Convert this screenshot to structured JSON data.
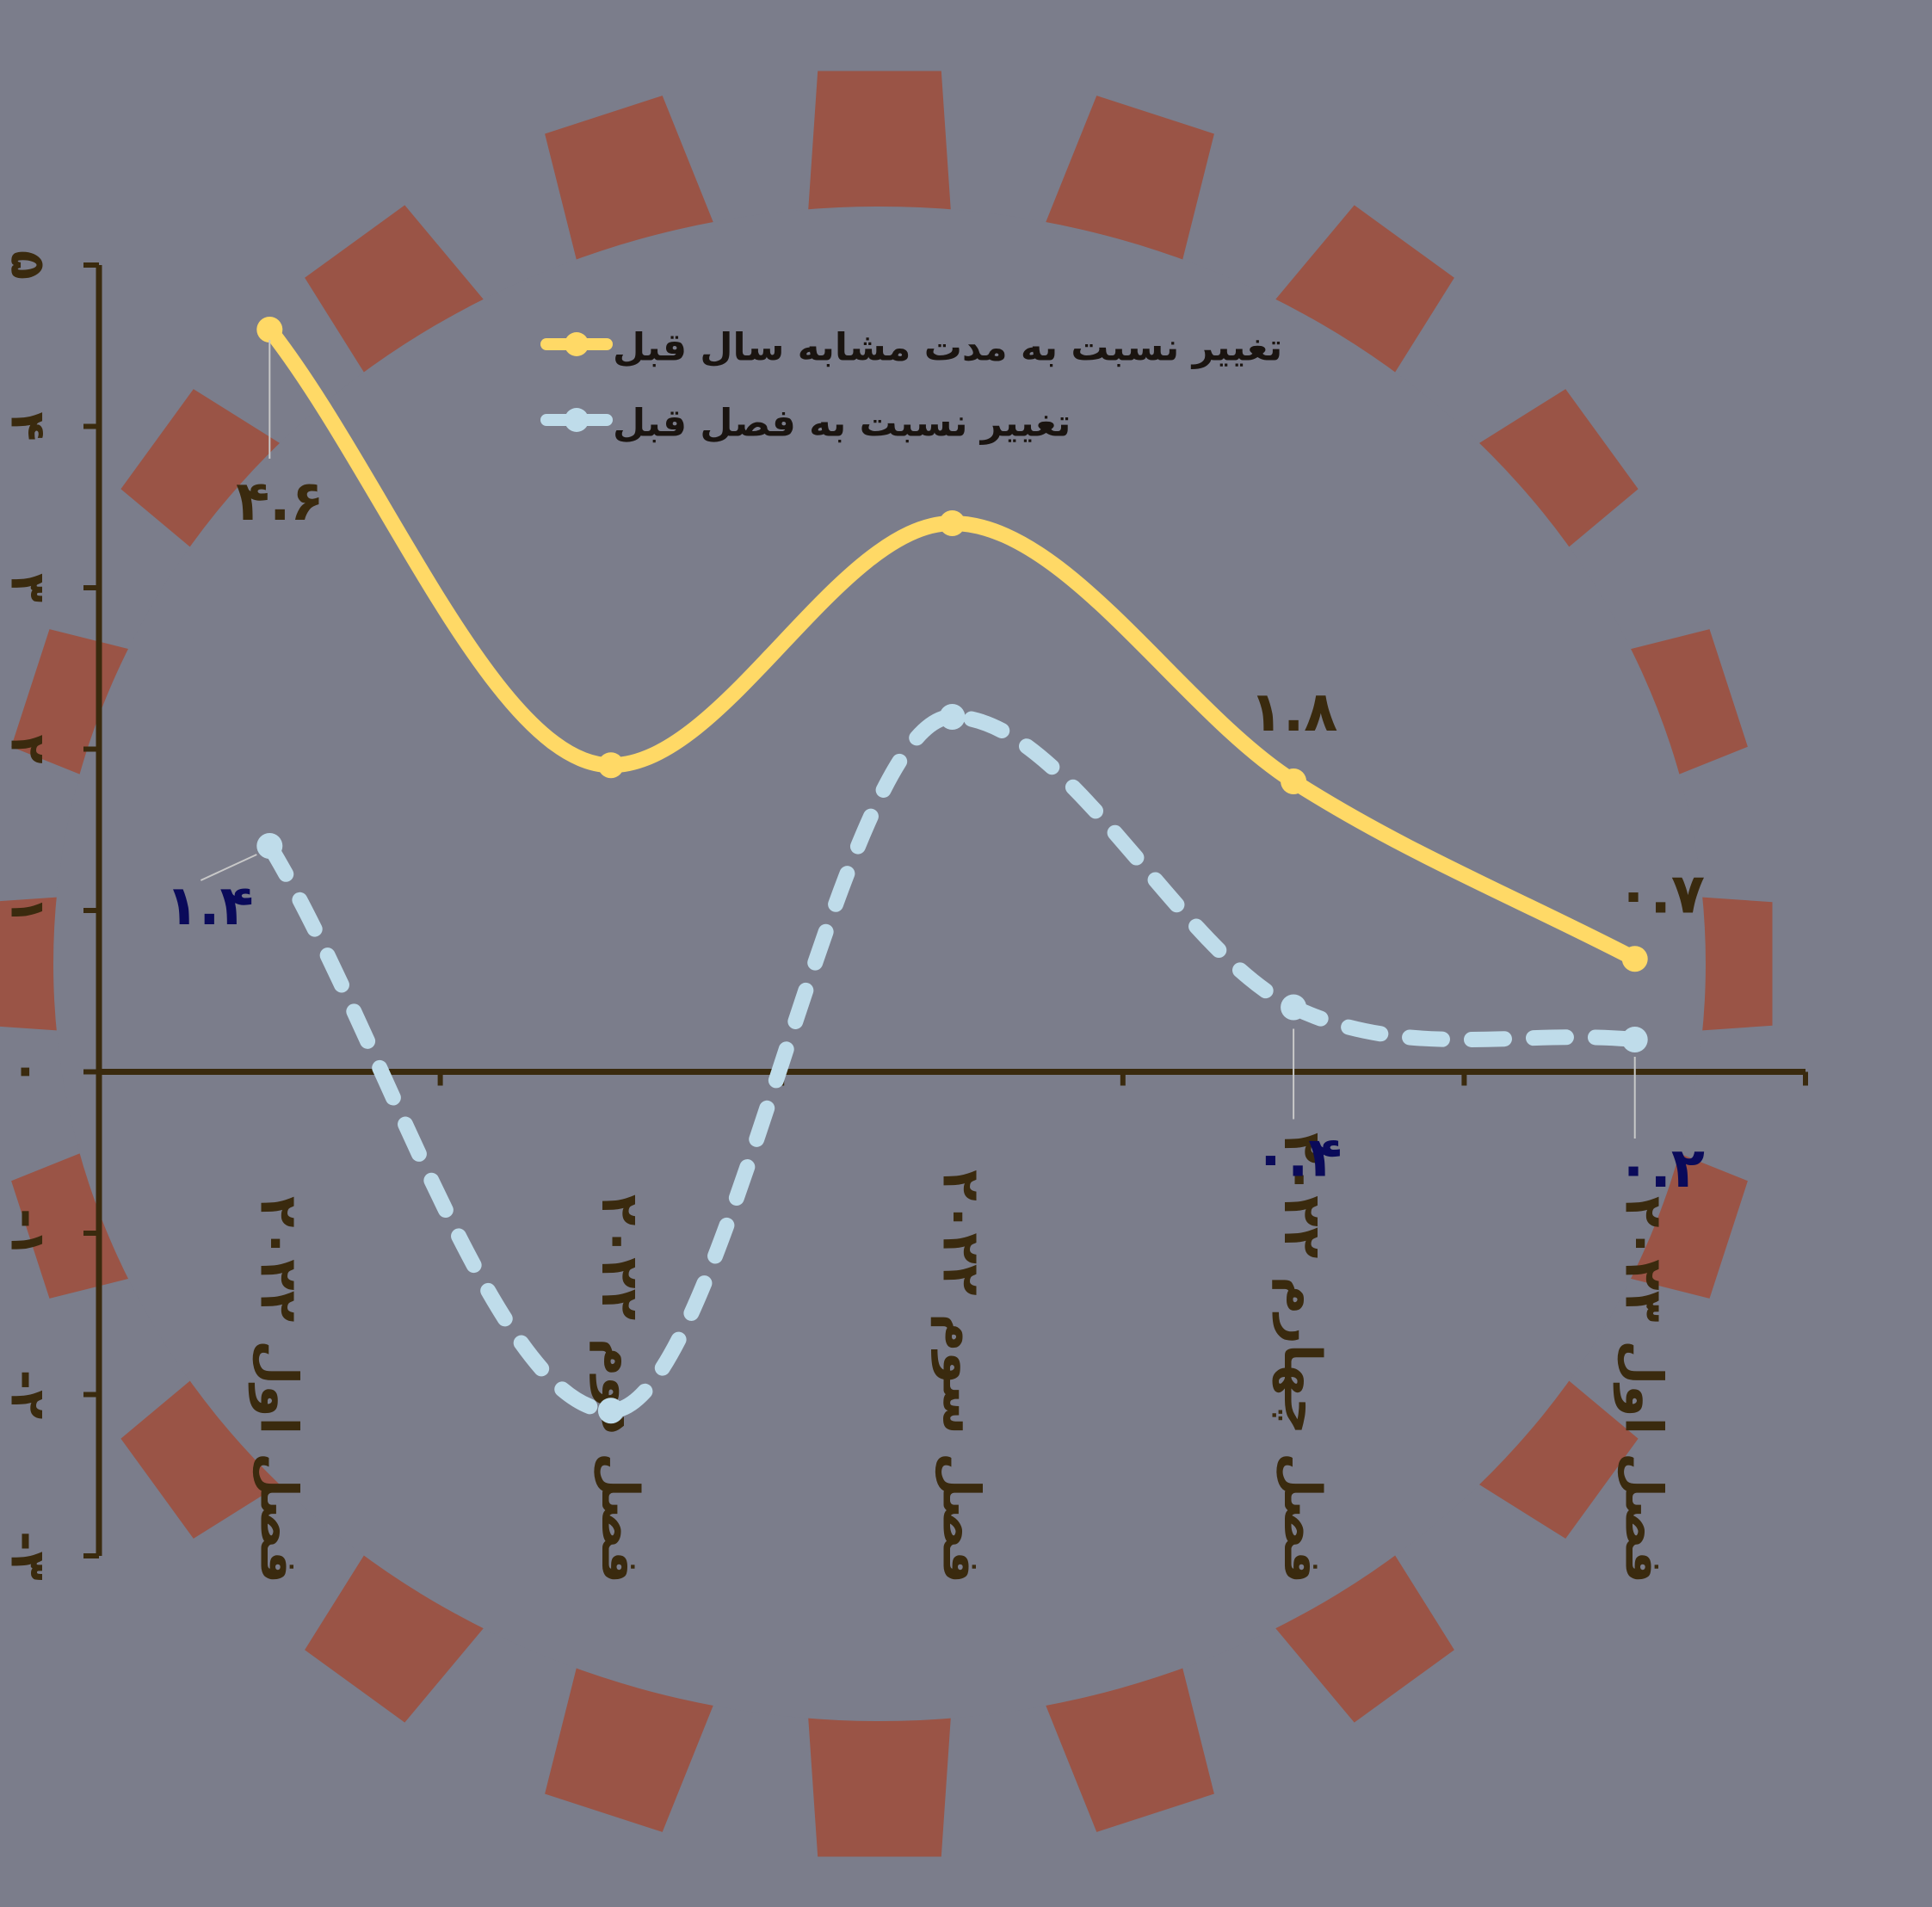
{
  "colors": {
    "background": "#7b7d8b",
    "gear": "#9a5446",
    "axis": "#3a2a0e",
    "series_yoy": "#ffd966",
    "series_qoq": "#bfdcea",
    "label_yoy": "#3a2a0e",
    "label_qoq": "#0a0a5a",
    "leader": "#c8c8c8"
  },
  "chart_data": {
    "type": "line",
    "categories": [
      "فصل اول ۲۰۲۲",
      "فصل دوم ۲۰۲۲",
      "فصل سوم ۲۰۲۲",
      "فصل چهارم ۲۰۲۲",
      "فصل اول ۲۰۲۳"
    ],
    "y_tick_labels": [
      "-۳",
      "-۲",
      "-۱",
      "۰",
      "۱",
      "۲",
      "۳",
      "۴",
      "۵"
    ],
    "ylim": [
      -3,
      5
    ],
    "grid": false,
    "legend_position": "top",
    "smooth": true,
    "series": [
      {
        "name": "تغییر نسبت به مدت مشابه سال قبل",
        "values": [
          4.6,
          1.9,
          3.4,
          1.8,
          0.7
        ],
        "line_style": "solid",
        "data_labels": [
          "۴.۶",
          "",
          "",
          "۱.۸",
          "۰.۷"
        ]
      },
      {
        "name": "تغییر نسبت به فصل قبل",
        "values": [
          1.4,
          -2.1,
          2.2,
          0.4,
          0.2
        ],
        "line_style": "dashed",
        "data_labels": [
          "۱.۴",
          "",
          "",
          "۰.۴",
          "۰.۲"
        ]
      }
    ]
  }
}
